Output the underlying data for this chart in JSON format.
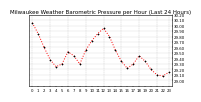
{
  "title": "Milwaukee Weather Barometric Pressure per Hour (Last 24 Hours)",
  "background_color": "#ffffff",
  "line_color": "#ff0000",
  "marker_color": "#000000",
  "grid_color": "#bbbbbb",
  "hours": [
    0,
    1,
    2,
    3,
    4,
    5,
    6,
    7,
    8,
    9,
    10,
    11,
    12,
    13,
    14,
    15,
    16,
    17,
    18,
    19,
    20,
    21,
    22,
    23
  ],
  "pressure": [
    30.05,
    29.85,
    29.6,
    29.38,
    29.25,
    29.3,
    29.52,
    29.45,
    29.3,
    29.55,
    29.72,
    29.85,
    29.95,
    29.8,
    29.55,
    29.35,
    29.22,
    29.3,
    29.45,
    29.35,
    29.2,
    29.1,
    29.08,
    29.15
  ],
  "ylim_min": 28.9,
  "ylim_max": 30.2,
  "ytick_values": [
    29.0,
    29.1,
    29.2,
    29.3,
    29.4,
    29.5,
    29.6,
    29.7,
    29.8,
    29.9,
    30.0,
    30.1,
    30.2
  ],
  "ytick_labels": [
    "29.00",
    "29.10",
    "29.20",
    "29.30",
    "29.40",
    "29.50",
    "29.60",
    "29.70",
    "29.80",
    "29.90",
    "30.00",
    "30.10",
    "30.20"
  ],
  "xtick_values": [
    0,
    1,
    2,
    3,
    4,
    5,
    6,
    7,
    8,
    9,
    10,
    11,
    12,
    13,
    14,
    15,
    16,
    17,
    18,
    19,
    20,
    21,
    22,
    23
  ],
  "xtick_labels": [
    "0",
    "1",
    "2",
    "3",
    "4",
    "5",
    "6",
    "7",
    "8",
    "9",
    "10",
    "11",
    "12",
    "13",
    "14",
    "15",
    "16",
    "17",
    "18",
    "19",
    "20",
    "21",
    "22",
    "23"
  ],
  "vgrid_positions": [
    0,
    3,
    6,
    9,
    12,
    15,
    18,
    21,
    23
  ],
  "title_fontsize": 4.0,
  "tick_fontsize": 2.8,
  "linewidth": 0.7,
  "markersize": 2.0,
  "markeredgewidth": 0.5
}
